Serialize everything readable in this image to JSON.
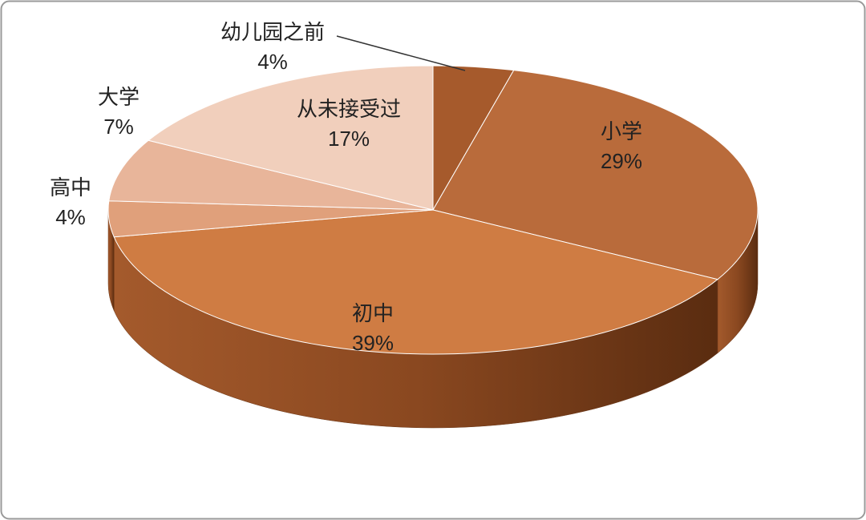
{
  "chart_data": {
    "type": "pie",
    "categories": [
      "幼儿园之前",
      "小学",
      "初中",
      "高中",
      "大学",
      "从未接受过"
    ],
    "values": [
      4,
      29,
      39,
      4,
      7,
      17
    ],
    "value_labels": [
      "4%",
      "29%",
      "39%",
      "4%",
      "7%",
      "17%"
    ],
    "colors": [
      "#a65a2c",
      "#b96b3b",
      "#cf7c43",
      "#e0a07b",
      "#e8b59a",
      "#f1cfbc"
    ],
    "three_d": true
  }
}
